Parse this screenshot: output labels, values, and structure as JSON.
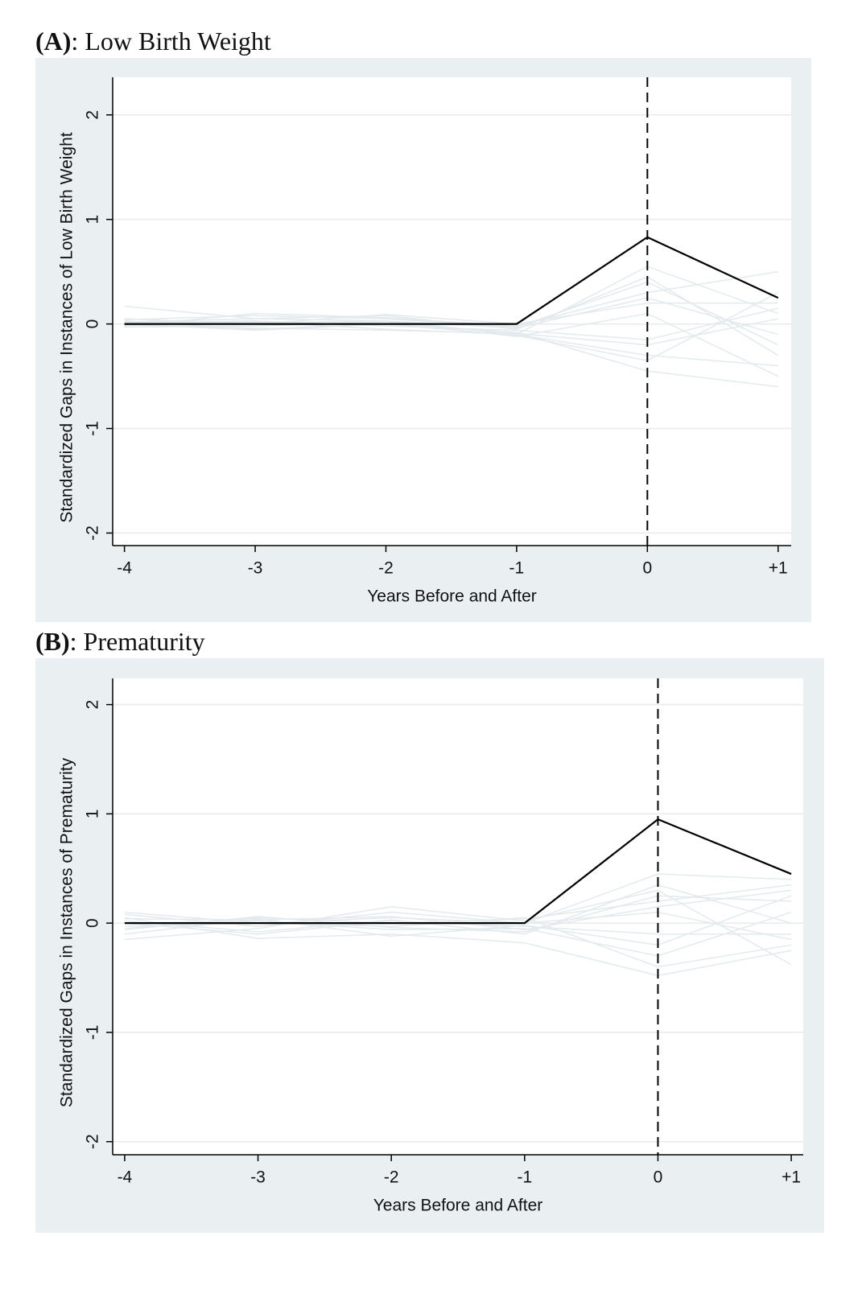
{
  "chart_data": [
    {
      "type": "line",
      "panel": "(A)",
      "title": ": Low Birth Weight",
      "xlabel": "Years Before and After",
      "ylabel": "Standardized Gaps in Instances of Low Birth Weight",
      "x": [
        -4,
        -3,
        -2,
        -1,
        0,
        1
      ],
      "xlim": [
        -4.09,
        1.1
      ],
      "xticks": [
        -4,
        -3,
        -2,
        -1,
        0,
        {
          "value": 1,
          "label": "+1"
        }
      ],
      "ylim": [
        -2.12,
        2.36
      ],
      "yticks": [
        -2,
        -1,
        0,
        1,
        2
      ],
      "grid": true,
      "vline": 0,
      "series": [
        {
          "color": "#e3eaed",
          "values": [
            0.02,
            0.05,
            0.03,
            -0.1,
            0.55,
            0.1
          ]
        },
        {
          "color": "#e3eaed",
          "values": [
            0.17,
            0.05,
            0.08,
            -0.05,
            0.45,
            -0.3
          ]
        },
        {
          "color": "#e3eaed",
          "values": [
            -0.02,
            0.1,
            0.06,
            -0.02,
            0.3,
            0.5
          ]
        },
        {
          "color": "#e3eaed",
          "values": [
            0.03,
            -0.05,
            0.0,
            -0.08,
            -0.45,
            -0.6
          ]
        },
        {
          "color": "#e3eaed",
          "values": [
            0.0,
            0.02,
            -0.05,
            -0.1,
            -0.3,
            -0.4
          ]
        },
        {
          "color": "#e3eaed",
          "values": [
            0.05,
            0.0,
            0.09,
            0.0,
            0.2,
            0.2
          ]
        },
        {
          "color": "#e3eaed",
          "values": [
            -0.03,
            -0.02,
            0.02,
            -0.12,
            0.1,
            -0.5
          ]
        },
        {
          "color": "#e3eaed",
          "values": [
            0.01,
            0.03,
            -0.02,
            -0.06,
            -0.15,
            0.15
          ]
        },
        {
          "color": "#e3eaed",
          "values": [
            0.04,
            0.08,
            0.05,
            -0.03,
            0.4,
            -0.2
          ]
        },
        {
          "color": "#e3eaed",
          "values": [
            -0.01,
            -0.04,
            -0.06,
            -0.09,
            -0.2,
            0.05
          ]
        },
        {
          "color": "#e3eaed",
          "values": [
            0.02,
            0.01,
            0.03,
            -0.04,
            0.25,
            -0.1
          ]
        },
        {
          "color": "#e3eaed",
          "values": [
            0.0,
            -0.06,
            0.0,
            -0.11,
            -0.35,
            0.3
          ]
        },
        {
          "color": "#000000",
          "values": [
            0,
            0,
            0,
            0,
            0.83,
            0.25
          ]
        }
      ]
    },
    {
      "type": "line",
      "panel": "(B)",
      "title": ": Prematurity",
      "xlabel": "Years Before and After",
      "ylabel": "Standardized Gaps in Instances of Prematurity",
      "x": [
        -4,
        -3,
        -2,
        -1,
        0,
        1
      ],
      "xlim": [
        -4.09,
        1.09
      ],
      "xticks": [
        -4,
        -3,
        -2,
        -1,
        0,
        {
          "value": 1,
          "label": "+1"
        }
      ],
      "ylim": [
        -2.12,
        2.24
      ],
      "yticks": [
        -2,
        -1,
        0,
        1,
        2
      ],
      "grid": true,
      "vline": 0,
      "series": [
        {
          "color": "#e3eaed",
          "values": [
            0.1,
            0.0,
            0.05,
            0.0,
            0.45,
            0.4
          ]
        },
        {
          "color": "#e3eaed",
          "values": [
            -0.15,
            -0.05,
            0.15,
            0.02,
            0.3,
            -0.38
          ]
        },
        {
          "color": "#e3eaed",
          "values": [
            0.05,
            -0.14,
            -0.1,
            -0.18,
            -0.48,
            -0.25
          ]
        },
        {
          "color": "#e3eaed",
          "values": [
            -0.05,
            0.05,
            0.0,
            0.04,
            0.2,
            0.35
          ]
        },
        {
          "color": "#e3eaed",
          "values": [
            0.0,
            0.02,
            -0.06,
            -0.05,
            -0.3,
            0.1
          ]
        },
        {
          "color": "#e3eaed",
          "values": [
            0.08,
            -0.03,
            0.1,
            0.0,
            0.1,
            -0.15
          ]
        },
        {
          "color": "#e3eaed",
          "values": [
            -0.1,
            0.04,
            -0.12,
            -0.02,
            -0.2,
            0.25
          ]
        },
        {
          "color": "#e3eaed",
          "values": [
            0.02,
            -0.08,
            0.03,
            -0.1,
            0.35,
            0.0
          ]
        },
        {
          "color": "#e3eaed",
          "values": [
            -0.03,
            0.0,
            -0.03,
            0.05,
            -0.4,
            -0.2
          ]
        },
        {
          "color": "#e3eaed",
          "values": [
            0.04,
            0.03,
            0.06,
            -0.06,
            0.15,
            0.3
          ]
        },
        {
          "color": "#e3eaed",
          "values": [
            0.0,
            -0.1,
            0.02,
            -0.03,
            -0.1,
            -0.1
          ]
        },
        {
          "color": "#e3eaed",
          "values": [
            -0.06,
            0.06,
            -0.04,
            -0.08,
            0.25,
            0.2
          ]
        },
        {
          "color": "#000000",
          "values": [
            0,
            0,
            0,
            0,
            0.95,
            0.45
          ]
        }
      ]
    }
  ]
}
